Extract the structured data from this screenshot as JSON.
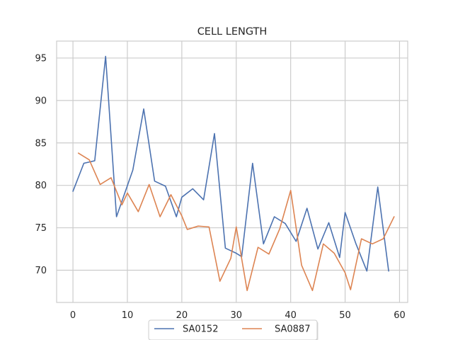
{
  "chart_data": {
    "type": "line",
    "title": "CELL LENGTH",
    "xlabel": "",
    "ylabel": "",
    "xlim": [
      -3,
      61.5
    ],
    "ylim": [
      66.2,
      97.0
    ],
    "xticks": [
      0,
      10,
      20,
      30,
      40,
      50,
      60
    ],
    "yticks": [
      70,
      75,
      80,
      85,
      90,
      95
    ],
    "grid": true,
    "legend_position": "bottom-center",
    "series": [
      {
        "name": "SA0152",
        "color": "#4c72b0",
        "x": [
          0,
          2,
          4,
          6,
          8,
          11,
          13,
          15,
          17,
          19,
          20,
          22,
          24,
          26,
          28,
          30,
          31,
          33,
          35,
          37,
          39,
          41,
          43,
          45,
          47,
          49,
          50,
          52,
          54,
          56,
          58
        ],
        "y": [
          79.3,
          82.6,
          82.9,
          95.2,
          76.3,
          81.8,
          89.0,
          80.5,
          79.9,
          76.3,
          78.6,
          79.6,
          78.3,
          86.1,
          72.6,
          72.0,
          71.6,
          82.6,
          73.1,
          76.3,
          75.5,
          73.4,
          77.3,
          72.5,
          75.6,
          71.5,
          76.8,
          73.1,
          69.9,
          79.8,
          69.9
        ]
      },
      {
        "name": "SA0887",
        "color": "#dd8452",
        "x": [
          1,
          3,
          5,
          7,
          9,
          10,
          12,
          14,
          16,
          18,
          20,
          21,
          23,
          25,
          27,
          29,
          30,
          32,
          34,
          36,
          38,
          40,
          42,
          44,
          46,
          48,
          50,
          51,
          53,
          55,
          57,
          59
        ],
        "y": [
          83.8,
          83.0,
          80.1,
          80.9,
          77.7,
          79.1,
          76.9,
          80.1,
          76.3,
          78.9,
          76.4,
          74.8,
          75.2,
          75.1,
          68.7,
          71.4,
          75.1,
          67.6,
          72.7,
          71.9,
          74.9,
          79.4,
          70.6,
          67.6,
          73.1,
          72.0,
          69.7,
          67.7,
          73.7,
          73.1,
          73.7,
          76.3
        ]
      }
    ]
  }
}
